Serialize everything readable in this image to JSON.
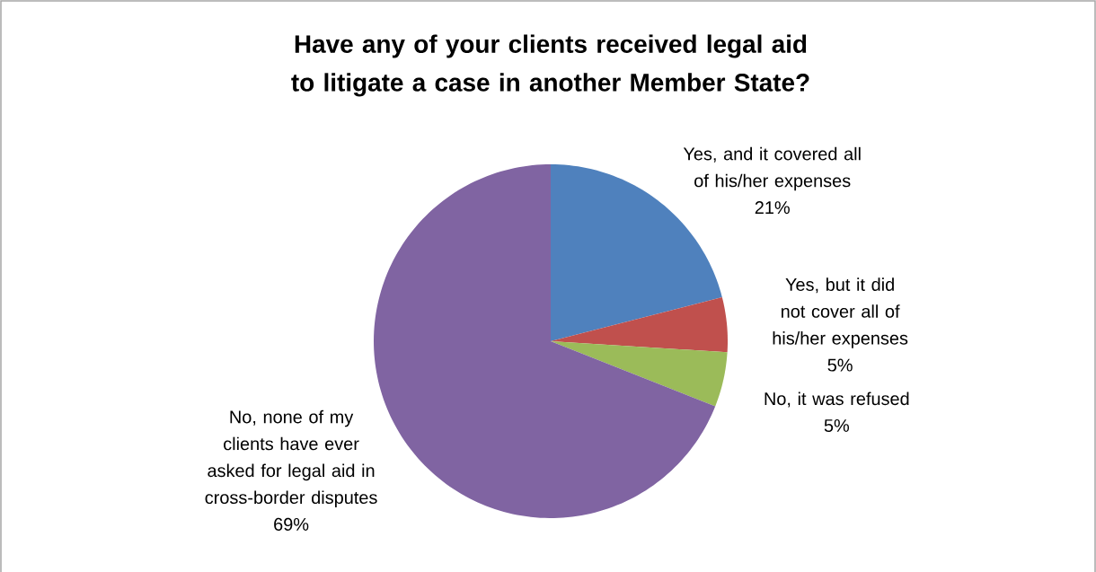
{
  "chart_data": {
    "type": "pie",
    "title": "Have any of your clients received legal aid to litigate a case in another Member State?",
    "categories": [
      "Yes, and it covered all of his/her expenses",
      "Yes, but it did not cover all of his/her expenses",
      "No, it was refused",
      "No, none of my clients have ever asked for legal aid in cross-border disputes"
    ],
    "values": [
      21,
      5,
      5,
      69
    ],
    "value_labels": [
      "21%",
      "5%",
      "5%",
      "69%"
    ],
    "colors": [
      "#4f81bd",
      "#c0504d",
      "#9bbb59",
      "#8064a2"
    ]
  }
}
